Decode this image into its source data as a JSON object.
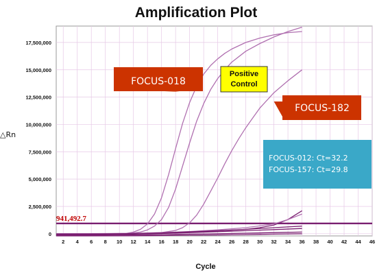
{
  "chart_data": {
    "type": "line",
    "title": "Amplification Plot",
    "xlabel": "Cycle",
    "ylabel": "△Rn",
    "xlim": [
      1,
      46
    ],
    "ylim": [
      -200000,
      19000000
    ],
    "x_ticks": [
      2,
      4,
      6,
      8,
      10,
      12,
      14,
      16,
      18,
      20,
      22,
      24,
      26,
      28,
      30,
      32,
      34,
      36,
      38,
      40,
      42,
      44,
      46
    ],
    "y_ticks": [
      0,
      2500000,
      5000000,
      7500000,
      10000000,
      12500000,
      15000000,
      17500000
    ],
    "y_tick_labels": [
      "0",
      "2,500,000",
      "5,000,000",
      "7,500,000",
      "10,000,000",
      "12,500,000",
      "15,000,000",
      "17,500,000"
    ],
    "grid": true,
    "threshold": {
      "value": 941492.7,
      "label": "941,492.7",
      "color": "#7a1f70"
    },
    "series": [
      {
        "x": [
          1,
          4,
          8,
          11,
          12,
          13,
          14,
          15,
          16,
          17,
          18,
          19,
          20,
          21,
          22,
          23,
          24,
          25,
          26,
          28,
          30,
          32,
          34,
          36
        ],
        "values": [
          0,
          0,
          0,
          30000,
          150000,
          400000,
          900000,
          1800000,
          3300000,
          5400000,
          7800000,
          10100000,
          12000000,
          13500000,
          14600000,
          15400000,
          16000000,
          16500000,
          16900000,
          17500000,
          17900000,
          18200000,
          18400000,
          18500000
        ],
        "color": "#b070b0"
      },
      {
        "x": [
          1,
          4,
          8,
          11,
          13,
          14,
          15,
          16,
          17,
          18,
          19,
          20,
          21,
          22,
          23,
          24,
          25,
          26,
          28,
          30,
          32,
          34,
          36
        ],
        "values": [
          0,
          0,
          0,
          0,
          150000,
          350000,
          700000,
          1300000,
          2400000,
          4100000,
          6200000,
          8300000,
          10300000,
          11900000,
          13200000,
          14200000,
          15000000,
          15700000,
          16700000,
          17400000,
          18000000,
          18500000,
          18900000
        ],
        "color": "#b070b0"
      },
      {
        "x": [
          1,
          4,
          8,
          12,
          16,
          18,
          19,
          20,
          21,
          22,
          23,
          24,
          25,
          26,
          27,
          28,
          29,
          30,
          32,
          34,
          36
        ],
        "values": [
          0,
          0,
          0,
          0,
          100000,
          300000,
          550000,
          1000000,
          1700000,
          2700000,
          3900000,
          5100000,
          6400000,
          7600000,
          8700000,
          9700000,
          10600000,
          11500000,
          12900000,
          14000000,
          15000000
        ],
        "color": "#b070b0"
      },
      {
        "x": [
          1,
          10,
          14,
          16,
          20,
          24,
          28,
          30,
          32,
          34,
          36
        ],
        "values": [
          0,
          0,
          40000,
          80000,
          150000,
          250000,
          400000,
          550000,
          800000,
          1300000,
          2100000
        ],
        "color": "#7a1f70"
      },
      {
        "x": [
          1,
          12,
          16,
          20,
          24,
          28,
          32,
          34,
          36
        ],
        "values": [
          0,
          30000,
          100000,
          200000,
          350000,
          550000,
          900000,
          1300000,
          1800000
        ],
        "color": "#b070b0"
      },
      {
        "x": [
          1,
          8,
          12,
          16,
          20,
          24,
          28,
          32,
          36
        ],
        "values": [
          -30000,
          -10000,
          20000,
          80000,
          180000,
          280000,
          400000,
          550000,
          700000
        ],
        "color": "#7a1f70"
      },
      {
        "x": [
          1,
          8,
          12,
          16,
          20,
          24,
          28,
          32,
          36
        ],
        "values": [
          -80000,
          -60000,
          -30000,
          20000,
          100000,
          180000,
          280000,
          380000,
          480000
        ],
        "color": "#7a1f70"
      },
      {
        "x": [
          1,
          8,
          12,
          16,
          20,
          24,
          28,
          32,
          36
        ],
        "values": [
          -150000,
          -130000,
          -110000,
          -80000,
          -40000,
          0,
          50000,
          100000,
          150000
        ],
        "color": "#7a1f70"
      },
      {
        "x": [
          1,
          12,
          16,
          20,
          24,
          28,
          32,
          36
        ],
        "values": [
          -200000,
          -190000,
          -170000,
          -140000,
          -110000,
          -80000,
          -40000,
          0
        ],
        "color": "#7a1f70"
      }
    ],
    "annotations": [
      {
        "text": "FOCUS-018",
        "color": "#cc3300",
        "anchor_x": 18,
        "anchor_y": 13000000
      },
      {
        "text": "FOCUS-182",
        "color": "#cc3300",
        "anchor_x": 32,
        "anchor_y": 12100000
      },
      {
        "text_lines": [
          "Positive",
          "Control"
        ],
        "color": "#ffff00",
        "anchor_x": 25,
        "anchor_y": 14600000
      },
      {
        "text_lines": [
          "FOCUS-012: Ct=32.2",
          "FOCUS-157: Ct=29.8"
        ],
        "color": "#3aa8c8"
      }
    ]
  }
}
